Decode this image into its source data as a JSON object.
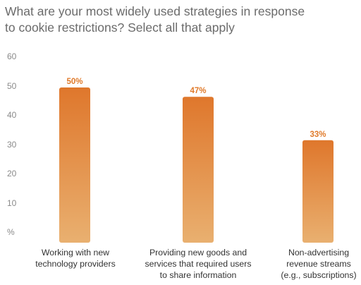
{
  "title": {
    "lines": [
      "What are your most widely used strategies in response",
      "to cookie restrictions? Select all that apply"
    ]
  },
  "colors": {
    "bar_top": "#df772c",
    "bar_bottom": "#e9b070",
    "value_label": "#e07a2a",
    "axis_text": "#8a8a8a",
    "title_text": "#6b6b6b"
  },
  "chart_data": {
    "type": "bar",
    "title": "What are your most widely used strategies in response to cookie restrictions? Select all that apply",
    "categories": [
      "Working with new technology providers",
      "Providing new goods and services that required users to share information",
      "Non-advertising revenue streams (e.g., subscriptions)"
    ],
    "category_lines": [
      [
        "Working with new",
        "technology providers"
      ],
      [
        "Providing new goods and",
        "services that required users",
        "to share information"
      ],
      [
        "Non-advertising",
        "revenue streams",
        "(e.g., subscriptions)"
      ]
    ],
    "values": [
      50,
      47,
      33
    ],
    "value_labels": [
      "50%",
      "47%",
      "33%"
    ],
    "ylim": [
      0,
      60
    ],
    "yticks": [
      60,
      50,
      40,
      30,
      20,
      10
    ],
    "ytick_labels": [
      "60",
      "50",
      "40",
      "30",
      "20",
      "10",
      "%"
    ],
    "grid": false,
    "legend": "none"
  }
}
